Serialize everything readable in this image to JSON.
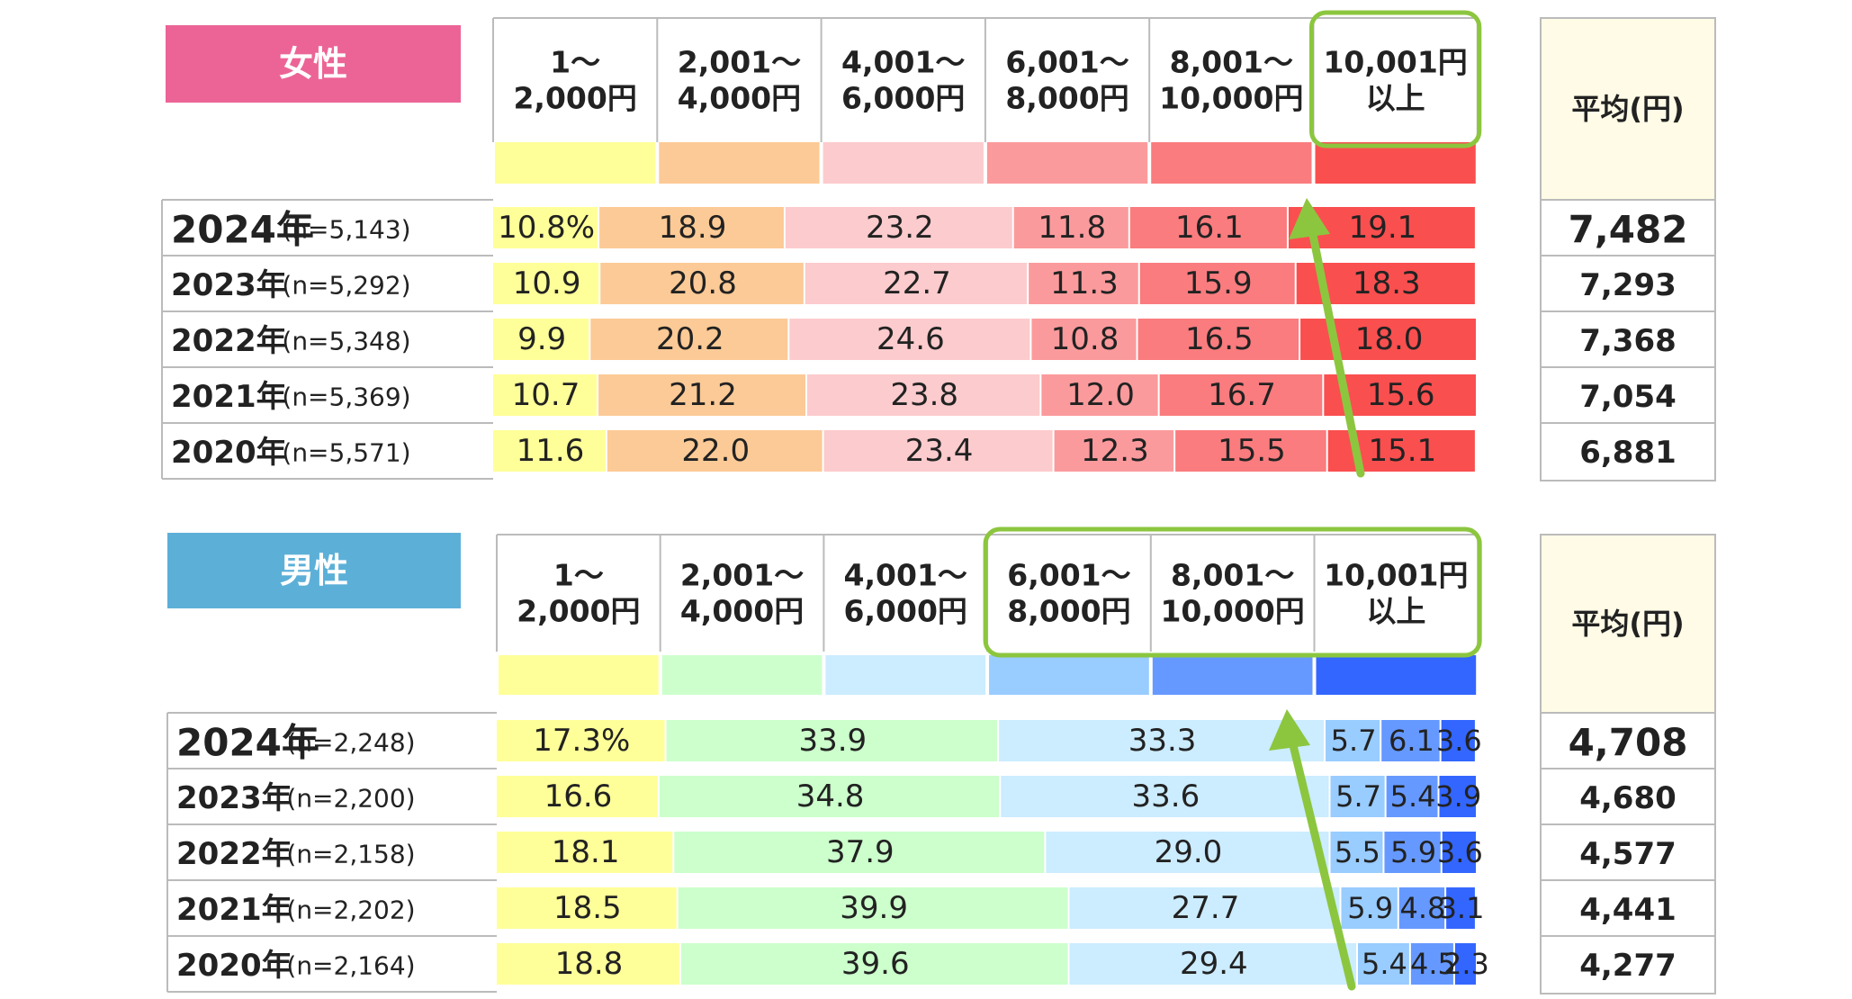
{
  "chart_data": [
    {
      "type": "bar",
      "stacked": true,
      "orientation": "horizontal",
      "gender_label": "女性",
      "gender_color": "#ec6496",
      "categories": [
        {
          "line1": "1～",
          "line2": "2,000円"
        },
        {
          "line1": "2,001～",
          "line2": "4,000円"
        },
        {
          "line1": "4,001～",
          "line2": "6,000円"
        },
        {
          "line1": "6,001～",
          "line2": "8,000円"
        },
        {
          "line1": "8,001～",
          "line2": "10,000円"
        },
        {
          "line1": "10,001円",
          "line2": "以上"
        }
      ],
      "colors": [
        "#ffff99",
        "#fcca96",
        "#fccbcd",
        "#fb9a9c",
        "#fa7c7e",
        "#fa4f4f"
      ],
      "avg_header": "平均(円)",
      "rows": [
        {
          "year": "2024年",
          "n": "(n=5,143)",
          "values": [
            10.8,
            18.9,
            23.2,
            11.8,
            16.1,
            19.1
          ],
          "labels": [
            "10.8%",
            "18.9",
            "23.2",
            "11.8",
            "16.1",
            "19.1"
          ],
          "avg": "7,482"
        },
        {
          "year": "2023年",
          "n": "(n=5,292)",
          "values": [
            10.9,
            20.8,
            22.7,
            11.3,
            15.9,
            18.3
          ],
          "labels": [
            "10.9",
            "20.8",
            "22.7",
            "11.3",
            "15.9",
            "18.3"
          ],
          "avg": "7,293"
        },
        {
          "year": "2022年",
          "n": "(n=5,348)",
          "values": [
            9.9,
            20.2,
            24.6,
            10.8,
            16.5,
            18.0
          ],
          "labels": [
            "9.9",
            "20.2",
            "24.6",
            "10.8",
            "16.5",
            "18.0"
          ],
          "avg": "7,368"
        },
        {
          "year": "2021年",
          "n": "(n=5,369)",
          "values": [
            10.7,
            21.2,
            23.8,
            12.0,
            16.7,
            15.6
          ],
          "labels": [
            "10.7",
            "21.2",
            "23.8",
            "12.0",
            "16.7",
            "15.6"
          ],
          "avg": "7,054"
        },
        {
          "year": "2020年",
          "n": "(n=5,571)",
          "values": [
            11.6,
            22.0,
            23.4,
            12.3,
            15.5,
            15.1
          ],
          "labels": [
            "11.6",
            "22.0",
            "23.4",
            "12.3",
            "15.5",
            "15.1"
          ],
          "avg": "6,881"
        }
      ],
      "highlight_categories": [
        5
      ]
    },
    {
      "type": "bar",
      "stacked": true,
      "orientation": "horizontal",
      "gender_label": "男性",
      "gender_color": "#5cb0d8",
      "categories": [
        {
          "line1": "1～",
          "line2": "2,000円"
        },
        {
          "line1": "2,001～",
          "line2": "4,000円"
        },
        {
          "line1": "4,001～",
          "line2": "6,000円"
        },
        {
          "line1": "6,001～",
          "line2": "8,000円"
        },
        {
          "line1": "8,001～",
          "line2": "10,000円"
        },
        {
          "line1": "10,001円",
          "line2": "以上"
        }
      ],
      "colors": [
        "#ffff99",
        "#ccffcc",
        "#ccecff",
        "#99ccff",
        "#6699ff",
        "#3366ff"
      ],
      "avg_header": "平均(円)",
      "rows": [
        {
          "year": "2024年",
          "n": "(n=2,248)",
          "values": [
            17.3,
            33.9,
            33.3,
            5.7,
            6.1,
            3.6
          ],
          "labels": [
            "17.3%",
            "33.9",
            "33.3",
            "5.7",
            "6.1",
            "3.6"
          ],
          "avg": "4,708"
        },
        {
          "year": "2023年",
          "n": "(n=2,200)",
          "values": [
            16.6,
            34.8,
            33.6,
            5.7,
            5.4,
            3.9
          ],
          "labels": [
            "16.6",
            "34.8",
            "33.6",
            "5.7",
            "5.4",
            "3.9"
          ],
          "avg": "4,680"
        },
        {
          "year": "2022年",
          "n": "(n=2,158)",
          "values": [
            18.1,
            37.9,
            29.0,
            5.5,
            5.9,
            3.6
          ],
          "labels": [
            "18.1",
            "37.9",
            "29.0",
            "5.5",
            "5.9",
            "3.6"
          ],
          "avg": "4,577"
        },
        {
          "year": "2021年",
          "n": "(n=2,202)",
          "values": [
            18.5,
            39.9,
            27.7,
            5.9,
            4.8,
            3.1
          ],
          "labels": [
            "18.5",
            "39.9",
            "27.7",
            "5.9",
            "4.8",
            "3.1"
          ],
          "avg": "4,441"
        },
        {
          "year": "2020年",
          "n": "(n=2,164)",
          "values": [
            18.8,
            39.6,
            29.4,
            5.4,
            4.5,
            2.3
          ],
          "labels": [
            "18.8",
            "39.6",
            "29.4",
            "5.4",
            "4.5",
            "2.3"
          ],
          "avg": "4,277"
        }
      ],
      "highlight_categories": [
        3,
        4,
        5
      ]
    }
  ],
  "annotation_colors": {
    "highlight_box": "#8cc63f",
    "arrow": "#8cc63f"
  }
}
